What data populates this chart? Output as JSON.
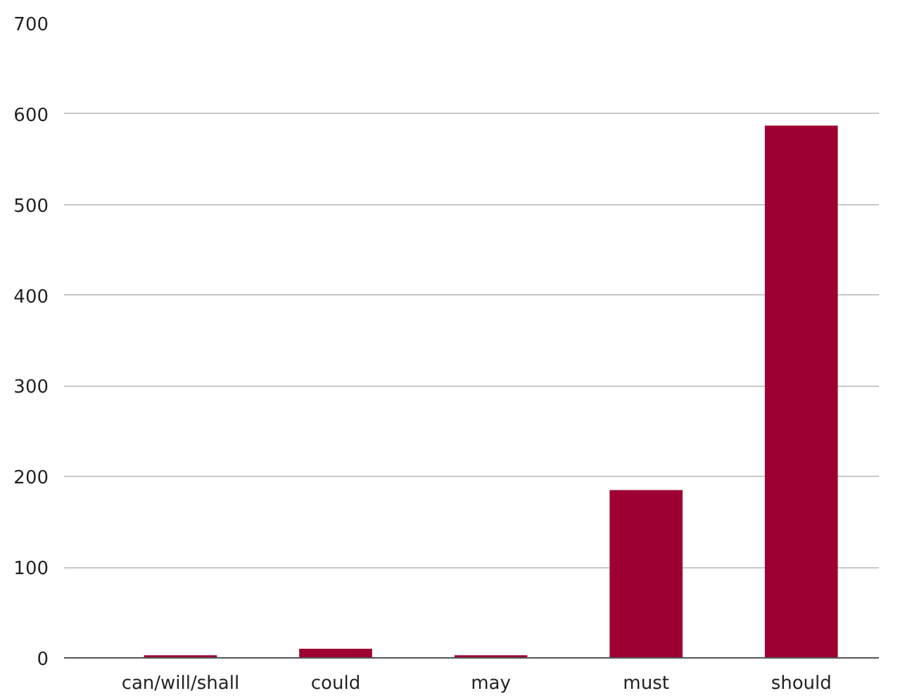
{
  "chart_data": {
    "type": "bar",
    "categories": [
      "can/will/shall",
      "could",
      "may",
      "must",
      "should"
    ],
    "values": [
      3,
      10,
      3,
      185,
      587
    ],
    "color": "#9e0031",
    "ylim": [
      0,
      700
    ],
    "yticks": [
      0,
      100,
      200,
      300,
      400,
      500,
      600,
      700
    ],
    "grid": "y"
  }
}
